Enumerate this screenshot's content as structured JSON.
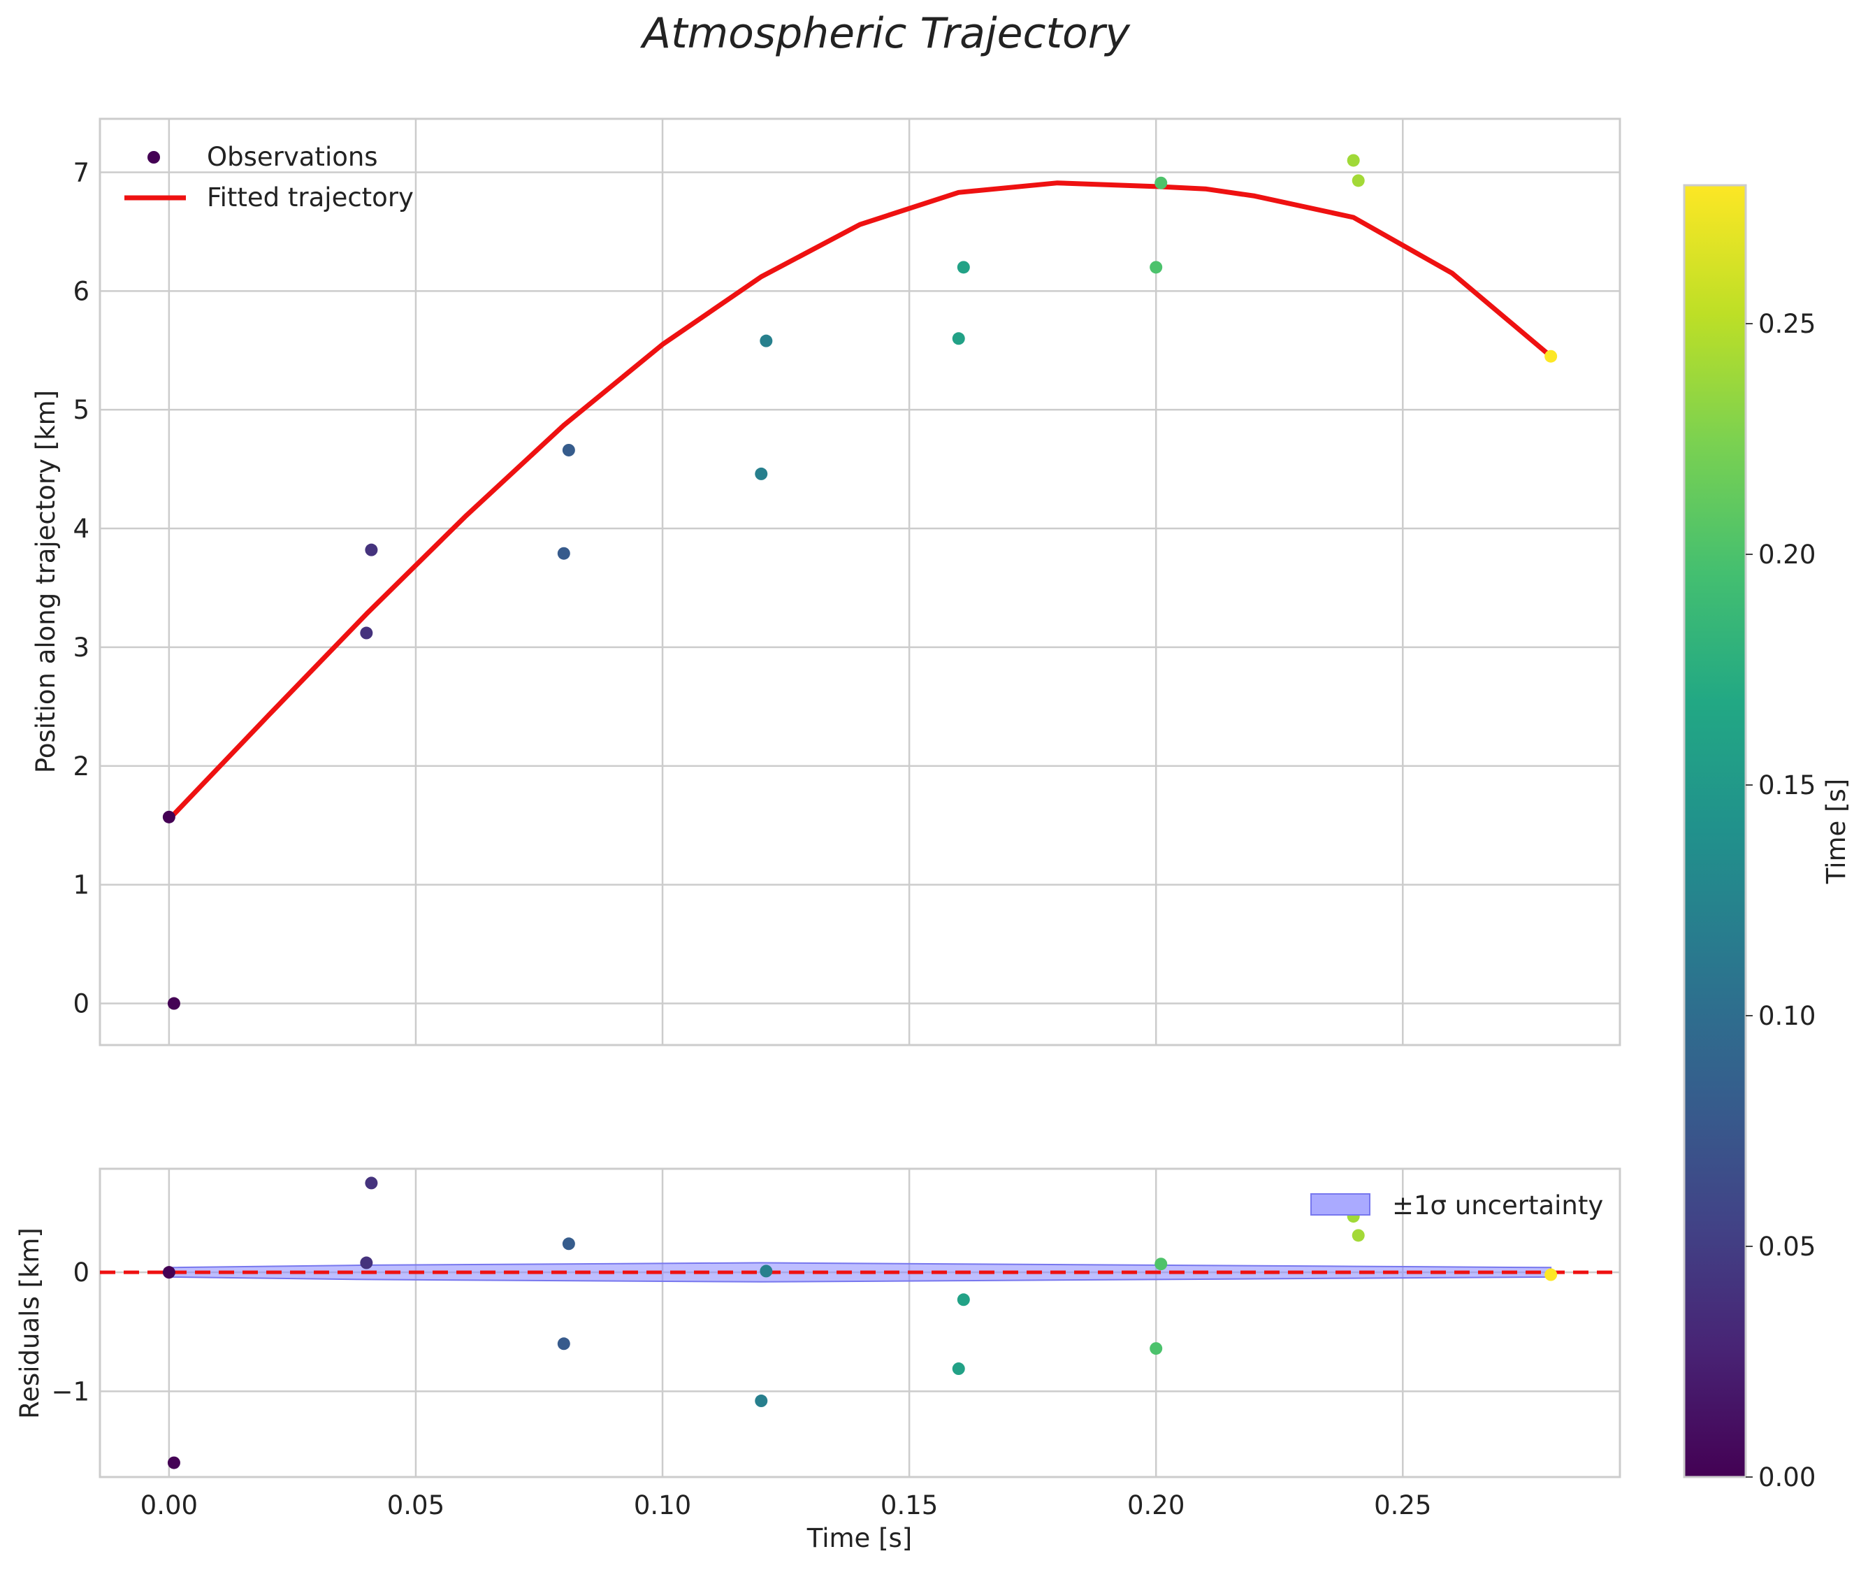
{
  "chart_data": {
    "type": "scatter",
    "title": "Atmospheric Trajectory",
    "main": {
      "ylabel": "Position along trajectory [km]",
      "xlim": [
        -0.014,
        0.294
      ],
      "ylim": [
        -0.35,
        7.45
      ],
      "xticks": [
        0.0,
        0.05,
        0.1,
        0.15,
        0.2,
        0.25
      ],
      "yticks": [
        0,
        1,
        2,
        3,
        4,
        5,
        6,
        7
      ],
      "grid": true,
      "legend": {
        "position": "top-left",
        "entries": [
          "Observations",
          "Fitted trajectory"
        ]
      },
      "observations": [
        {
          "t": 0.0,
          "y": 1.57
        },
        {
          "t": 0.001,
          "y": 0.0
        },
        {
          "t": 0.04,
          "y": 3.12
        },
        {
          "t": 0.041,
          "y": 3.82
        },
        {
          "t": 0.08,
          "y": 3.79
        },
        {
          "t": 0.081,
          "y": 4.66
        },
        {
          "t": 0.12,
          "y": 4.46
        },
        {
          "t": 0.121,
          "y": 5.58
        },
        {
          "t": 0.16,
          "y": 5.6
        },
        {
          "t": 0.161,
          "y": 6.2
        },
        {
          "t": 0.2,
          "y": 6.2
        },
        {
          "t": 0.201,
          "y": 6.91
        },
        {
          "t": 0.24,
          "y": 7.1
        },
        {
          "t": 0.241,
          "y": 6.93
        },
        {
          "t": 0.28,
          "y": 5.45
        }
      ],
      "fitted_trajectory": {
        "t": [
          0.0,
          0.02,
          0.04,
          0.06,
          0.08,
          0.1,
          0.12,
          0.14,
          0.16,
          0.18,
          0.2,
          0.21,
          0.22,
          0.24,
          0.26,
          0.28
        ],
        "y": [
          1.55,
          2.42,
          3.28,
          4.1,
          4.87,
          5.55,
          6.12,
          6.56,
          6.83,
          6.91,
          6.88,
          6.86,
          6.8,
          6.62,
          6.15,
          5.45
        ],
        "color": "#ee1111"
      }
    },
    "residuals": {
      "ylabel": "Residuals [km]",
      "xlabel": "Time [s]",
      "xlim": [
        -0.014,
        0.294
      ],
      "ylim": [
        -1.72,
        0.87
      ],
      "yticks": [
        -1,
        0
      ],
      "ytick_labels": [
        "−1",
        "0"
      ],
      "xticks": [
        0.0,
        0.05,
        0.1,
        0.15,
        0.2,
        0.25
      ],
      "xtick_labels": [
        "0.00",
        "0.05",
        "0.10",
        "0.15",
        "0.20",
        "0.25"
      ],
      "grid": true,
      "zero_line_color": "#ee1111",
      "legend": {
        "position": "top-right",
        "entries": [
          "±1σ uncertainty"
        ]
      },
      "uncertainty_band": {
        "t": [
          0.0,
          0.04,
          0.08,
          0.12,
          0.16,
          0.2,
          0.24,
          0.28
        ],
        "sigma": [
          0.04,
          0.06,
          0.07,
          0.08,
          0.07,
          0.06,
          0.05,
          0.04
        ],
        "color": "#8888ff"
      },
      "points": [
        {
          "t": 0.0,
          "r": 0.0
        },
        {
          "t": 0.001,
          "r": -1.6
        },
        {
          "t": 0.04,
          "r": 0.08
        },
        {
          "t": 0.041,
          "r": 0.75
        },
        {
          "t": 0.08,
          "r": -0.6
        },
        {
          "t": 0.081,
          "r": 0.24
        },
        {
          "t": 0.12,
          "r": -1.08
        },
        {
          "t": 0.121,
          "r": 0.01
        },
        {
          "t": 0.16,
          "r": -0.81
        },
        {
          "t": 0.161,
          "r": -0.23
        },
        {
          "t": 0.2,
          "r": -0.64
        },
        {
          "t": 0.201,
          "r": 0.07
        },
        {
          "t": 0.24,
          "r": 0.47
        },
        {
          "t": 0.241,
          "r": 0.31
        },
        {
          "t": 0.28,
          "r": -0.02
        }
      ]
    },
    "colorbar": {
      "label": "Time [s]",
      "range": [
        0,
        0.28
      ],
      "ticks": [
        0.0,
        0.05,
        0.1,
        0.15,
        0.2,
        0.25
      ],
      "tick_labels": [
        "0.00",
        "0.05",
        "0.10",
        "0.15",
        "0.20",
        "0.25"
      ],
      "colormap": "viridis"
    }
  }
}
